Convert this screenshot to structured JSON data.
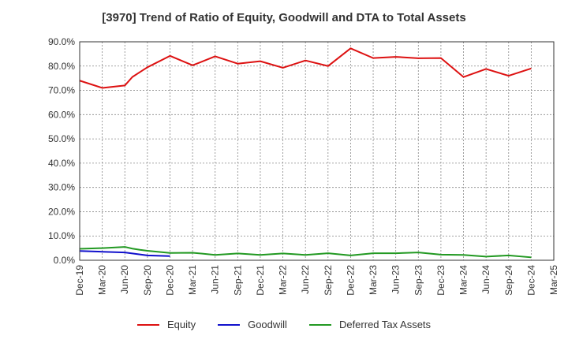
{
  "chart_data": {
    "type": "line",
    "title": "[3970]  Trend of Ratio of Equity, Goodwill and DTA to Total Assets",
    "xlabel": "",
    "ylabel": "",
    "ylim": [
      0,
      90
    ],
    "y_ticks": [
      "0.0%",
      "10.0%",
      "20.0%",
      "30.0%",
      "40.0%",
      "50.0%",
      "60.0%",
      "70.0%",
      "80.0%",
      "90.0%"
    ],
    "x_ticks": [
      "Dec-19",
      "Mar-20",
      "Jun-20",
      "Sep-20",
      "Dec-20",
      "Mar-21",
      "Jun-21",
      "Sep-21",
      "Dec-21",
      "Mar-22",
      "Jun-22",
      "Sep-22",
      "Dec-22",
      "Mar-23",
      "Jun-23",
      "Sep-23",
      "Dec-23",
      "Mar-24",
      "Jun-24",
      "Sep-24",
      "Dec-24",
      "Mar-25"
    ],
    "grid": true,
    "legend_position": "bottom",
    "series": [
      {
        "name": "Equity",
        "color": "#dd1111",
        "points": [
          [
            "Dec-19",
            74.0
          ],
          [
            "Mar-20",
            71.0
          ],
          [
            "Jun-20",
            72.0
          ],
          [
            "Jul-20",
            75.5
          ],
          [
            "Aug-20",
            77.5
          ],
          [
            "Sep-20",
            79.5
          ],
          [
            "Dec-20",
            84.2
          ],
          [
            "Mar-21",
            80.3
          ],
          [
            "Jun-21",
            84.0
          ],
          [
            "Sep-21",
            81.0
          ],
          [
            "Dec-21",
            82.0
          ],
          [
            "Mar-22",
            79.3
          ],
          [
            "Jun-22",
            82.3
          ],
          [
            "Sep-22",
            80.0
          ],
          [
            "Dec-22",
            87.3
          ],
          [
            "Mar-23",
            83.3
          ],
          [
            "Jun-23",
            83.8
          ],
          [
            "Sep-23",
            83.2
          ],
          [
            "Dec-23",
            83.3
          ],
          [
            "Mar-24",
            75.5
          ],
          [
            "Jun-24",
            78.8
          ],
          [
            "Sep-24",
            76.0
          ],
          [
            "Dec-24",
            79.0
          ]
        ]
      },
      {
        "name": "Goodwill",
        "color": "#1111cc",
        "points": [
          [
            "Dec-19",
            3.8
          ],
          [
            "Mar-20",
            3.5
          ],
          [
            "Jun-20",
            3.2
          ],
          [
            "Jul-20",
            2.8
          ],
          [
            "Aug-20",
            2.4
          ],
          [
            "Sep-20",
            2.0
          ],
          [
            "Dec-20",
            1.7
          ]
        ]
      },
      {
        "name": "Deferred Tax Assets",
        "color": "#229922",
        "points": [
          [
            "Dec-19",
            4.7
          ],
          [
            "Mar-20",
            5.0
          ],
          [
            "Jun-20",
            5.5
          ],
          [
            "Jul-20",
            4.8
          ],
          [
            "Aug-20",
            4.3
          ],
          [
            "Sep-20",
            3.9
          ],
          [
            "Dec-20",
            3.0
          ],
          [
            "Mar-21",
            3.1
          ],
          [
            "Jun-21",
            2.2
          ],
          [
            "Sep-21",
            2.8
          ],
          [
            "Dec-21",
            2.2
          ],
          [
            "Mar-22",
            2.8
          ],
          [
            "Jun-22",
            2.2
          ],
          [
            "Sep-22",
            2.9
          ],
          [
            "Dec-22",
            2.0
          ],
          [
            "Mar-23",
            2.9
          ],
          [
            "Jun-23",
            2.9
          ],
          [
            "Sep-23",
            3.2
          ],
          [
            "Dec-23",
            2.3
          ],
          [
            "Mar-24",
            2.2
          ],
          [
            "Jun-24",
            1.5
          ],
          [
            "Sep-24",
            2.0
          ],
          [
            "Dec-24",
            1.2
          ]
        ]
      }
    ]
  }
}
